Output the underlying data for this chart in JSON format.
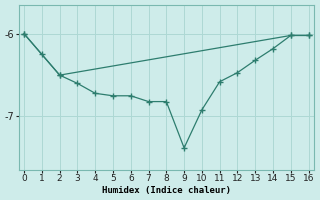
{
  "xlabel": "Humidex (Indice chaleur)",
  "ylabel": "",
  "bg_color": "#ceecea",
  "grid_color": "#add8d4",
  "line_color": "#2d7d6e",
  "xticks": [
    0,
    1,
    2,
    3,
    4,
    5,
    6,
    7,
    8,
    9,
    10,
    11,
    12,
    13,
    14,
    15,
    16
  ],
  "yticks": [
    -6,
    -7
  ],
  "ylim": [
    -7.65,
    -5.65
  ],
  "xlim": [
    -0.3,
    16.3
  ],
  "line1_x": [
    0,
    1,
    2,
    3,
    4,
    5,
    6,
    7,
    8,
    9,
    10,
    11,
    12,
    13,
    14,
    15,
    16
  ],
  "line1_y": [
    -6.0,
    -6.25,
    -6.5,
    -6.6,
    -6.72,
    -6.75,
    -6.75,
    -6.82,
    -6.82,
    -7.38,
    -6.92,
    -6.58,
    -6.47,
    -6.32,
    -6.18,
    -6.02,
    -6.02
  ],
  "line2_x": [
    0,
    2,
    15,
    16
  ],
  "line2_y": [
    -6.0,
    -6.5,
    -6.02,
    -6.02
  ]
}
